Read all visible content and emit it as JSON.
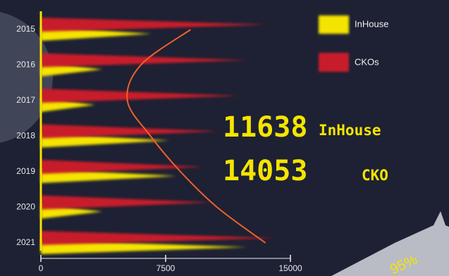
{
  "chart_data": {
    "type": "spike-bar",
    "categories": [
      "2015",
      "2016",
      "2017",
      "2018",
      "2019",
      "2020",
      "2021"
    ],
    "series": [
      {
        "name": "InHouse",
        "color": "#f5e400",
        "values": [
          6650,
          3690,
          3260,
          7710,
          8140,
          3690,
          12370
        ]
      },
      {
        "name": "CKOs",
        "color": "#c81e2a",
        "values": [
          13640,
          12370,
          11950,
          10680,
          9830,
          10250,
          14070
        ]
      },
      {
        "color": "#f0602a",
        "values": [
          9000,
          6000,
          5200,
          6600,
          8400,
          10600,
          13500
        ],
        "style": "curve"
      }
    ],
    "xlim": [
      0,
      15000
    ],
    "xticks": [
      0,
      7500,
      15000
    ],
    "annotations": [
      {
        "value": 11638,
        "label": "InHouse"
      },
      {
        "value": 14053,
        "label": "CKO"
      }
    ],
    "corner_text": "95%"
  }
}
